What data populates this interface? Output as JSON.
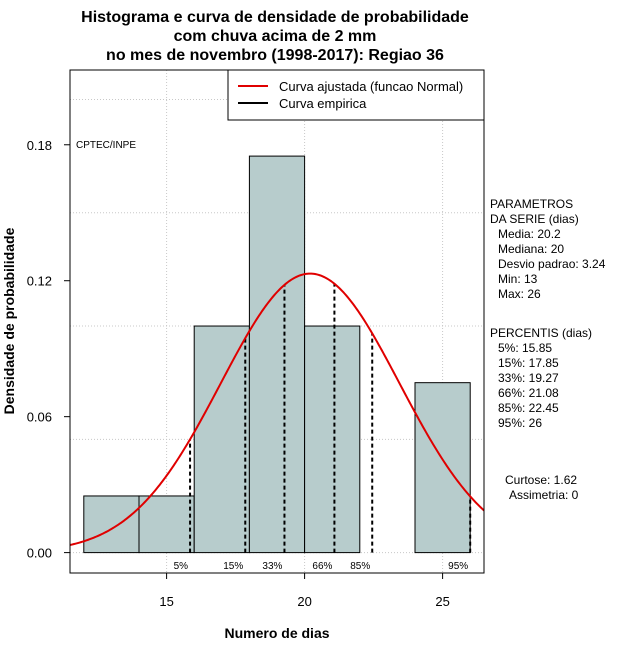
{
  "chart_data": {
    "type": "bar",
    "title": [
      "Histograma e curva de densidade de probabilidade",
      "com chuva acima de 2 mm",
      "no mes de novembro (1998-2017): Regiao 36"
    ],
    "xlabel": "Numero de dias",
    "ylabel": "Densidade de probabilidade",
    "xlim": [
      11.5,
      26.5
    ],
    "ylim": [
      -0.009,
      0.213
    ],
    "x_ticks": [
      15,
      20,
      25
    ],
    "y_ticks": [
      0.0,
      0.06,
      0.12,
      0.18
    ],
    "y_tick_labels": [
      "0.00",
      "0.06",
      "0.12",
      "0.18"
    ],
    "grid": true,
    "bins": [
      {
        "start": 12,
        "end": 14,
        "density": 0.025
      },
      {
        "start": 14,
        "end": 16,
        "density": 0.025
      },
      {
        "start": 16,
        "end": 18,
        "density": 0.1
      },
      {
        "start": 18,
        "end": 20,
        "density": 0.175
      },
      {
        "start": 20,
        "end": 22,
        "density": 0.1
      },
      {
        "start": 22,
        "end": 24,
        "density": 0.0
      },
      {
        "start": 24,
        "end": 26,
        "density": 0.075
      }
    ],
    "normal_curve": {
      "mean": 20.2,
      "sd": 3.24
    },
    "percentile_lines": [
      {
        "label": "5%",
        "value": 15.85
      },
      {
        "label": "15%",
        "value": 17.85
      },
      {
        "label": "33%",
        "value": 19.27
      },
      {
        "label": "66%",
        "value": 21.08
      },
      {
        "label": "85%",
        "value": 22.45
      },
      {
        "label": "95%",
        "value": 26
      }
    ],
    "legend": [
      {
        "label": "Curva ajustada (funcao Normal)",
        "color": "#e00000"
      },
      {
        "label": "Curva empirica",
        "color": "#000000"
      }
    ],
    "credit": "CPTEC/INPE",
    "parametros": {
      "header": [
        "PARAMETROS",
        "DA SERIE (dias)"
      ],
      "items": [
        "Media: 20.2",
        "Mediana: 20",
        "Desvio padrao: 3.24",
        "Min: 13",
        "Max: 26"
      ]
    },
    "percentis": {
      "header": "PERCENTIS (dias)",
      "items": [
        "5%: 15.85",
        "15%: 17.85",
        "33%: 19.27",
        "66%: 21.08",
        "85%: 22.45",
        "95%: 26"
      ]
    },
    "shape": [
      "Curtose: 1.62",
      "Assimetria: 0"
    ],
    "colors": {
      "bar_fill": "#b7cccc",
      "curve": "#e00000",
      "grid": "#c8c8c8"
    }
  }
}
